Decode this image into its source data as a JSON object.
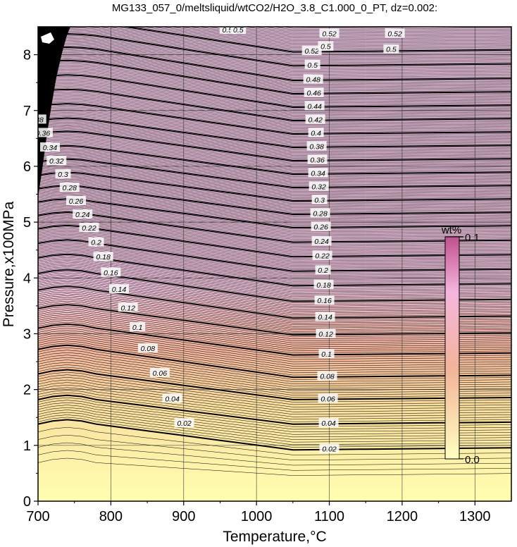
{
  "chart_data": {
    "type": "heatmap",
    "title": "MG133_057_0/meltsliquid/wtCO2/H2O_3.8_C1.000_0_PT, dz=0.002:",
    "xlabel": "Temperature,°C",
    "ylabel": "Pressure,x100MPa",
    "xlim": [
      700,
      1350
    ],
    "ylim": [
      0,
      8.5
    ],
    "x_ticks": [
      "700",
      "800",
      "900",
      "1000",
      "1100",
      "1200",
      "1300"
    ],
    "y_ticks": [
      "0",
      "1",
      "2",
      "3",
      "4",
      "5",
      "6",
      "7",
      "8"
    ],
    "grid": true,
    "contour_interval": 0.002,
    "major_contour_interval": 0.02,
    "colorbar": {
      "label": "wt%",
      "min_label": "0.0",
      "max_label": "0.1",
      "min": 0.0,
      "max": 0.1,
      "colors": [
        "#ffffc0",
        "#f2b49a",
        "#f4b6dc",
        "#c05090"
      ]
    },
    "contour_labels": [
      {
        "value": "0.02",
        "x": 715,
        "y": 1.0
      },
      {
        "value": "0.04",
        "x": 720,
        "y": 1.8
      },
      {
        "value": "0.06",
        "x": 745,
        "y": 2.3
      },
      {
        "value": "0.08",
        "x": 760,
        "y": 2.7
      },
      {
        "value": "0.1",
        "x": 775,
        "y": 3.1
      },
      {
        "value": "0.12",
        "x": 785,
        "y": 3.5
      }
    ],
    "left_labels": [
      "0.02",
      "0.04",
      "0.06",
      "0.08",
      "0.1",
      "0.12",
      "0.14",
      "0.16",
      "0.18",
      "0.2",
      "0.22",
      "0.24",
      "0.26",
      "0.28",
      "0.3",
      "0.32",
      "0.34",
      "0.36",
      "0.38",
      "0.4",
      "0.42",
      "0.44",
      "0.46",
      "0.48"
    ],
    "right_labels": [
      "0.02",
      "0.04",
      "0.06",
      "0.08",
      "0.1",
      "0.12",
      "0.14",
      "0.16",
      "0.18",
      "0.2",
      "0.22",
      "0.24",
      "0.26",
      "0.28",
      "0.3",
      "0.32",
      "0.34",
      "0.36",
      "0.38",
      "0.4",
      "0.42",
      "0.44",
      "0.46",
      "0.48",
      "0.5",
      "0.52"
    ],
    "top_labels": [
      "0.5",
      "0.5",
      "0.52",
      "0.5",
      "0.52",
      "0.5"
    ],
    "left_levels": [
      1.38,
      1.82,
      2.28,
      2.72,
      3.1,
      3.45,
      3.78,
      4.08,
      4.36,
      4.62,
      4.88,
      5.12,
      5.36,
      5.6,
      5.84,
      6.08,
      6.32,
      6.58,
      6.82,
      7.08,
      7.34,
      7.6,
      7.86,
      8.1
    ],
    "right_levels": [
      0.92,
      1.38,
      1.82,
      2.22,
      2.62,
      2.98,
      3.28,
      3.58,
      3.86,
      4.12,
      4.38,
      4.64,
      4.9,
      5.14,
      5.38,
      5.62,
      5.86,
      6.1,
      6.34,
      6.58,
      6.82,
      7.06,
      7.3,
      7.54,
      7.8,
      8.05
    ]
  }
}
